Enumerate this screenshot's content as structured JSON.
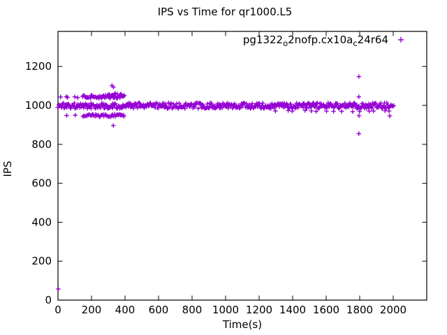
{
  "figure": {
    "background": "#ffffff",
    "accent_color": "#9400d3",
    "text_color": "#000000"
  },
  "chart_data": {
    "type": "scatter",
    "title": "IPS vs Time for qr1000.L5",
    "xlabel": "Time(s)",
    "ylabel": "IPS",
    "xlim": [
      0,
      2200
    ],
    "ylim": [
      0,
      1380
    ],
    "xticks": [
      0,
      200,
      400,
      600,
      800,
      1000,
      1200,
      1400,
      1600,
      1800,
      2000
    ],
    "yticks": [
      0,
      200,
      400,
      600,
      800,
      1000,
      1200
    ],
    "grid": false,
    "tick_style": "inward-mirrored",
    "legend_position": "top-right-inside",
    "series": [
      {
        "name": "pg1322_o2nofp.cx10a_c24r64",
        "legend_parts": [
          {
            "text": "pg1322",
            "sub": false
          },
          {
            "text": "o",
            "sub": true
          },
          {
            "text": "2nofp.cx10a",
            "sub": false
          },
          {
            "text": "c",
            "sub": true
          },
          {
            "text": "24r64",
            "sub": false
          }
        ],
        "marker": "plus",
        "color": "#9400d3",
        "clusters": [
          {
            "name": "main-band",
            "kind": "uniform",
            "t_min": 0,
            "t_max": 1985,
            "t_step": 4,
            "ips_min": 984,
            "ips_max": 1013
          },
          {
            "name": "band-tail",
            "kind": "uniform",
            "t_min": 1986,
            "t_max": 2004,
            "t_step": 4,
            "ips_min": 995,
            "ips_max": 1006
          },
          {
            "name": "upper-row-sparse",
            "kind": "points",
            "points": [
              [
                16,
                1043
              ],
              [
                50,
                1045
              ],
              [
                57,
                1041
              ],
              [
                100,
                1044
              ],
              [
                118,
                1040
              ]
            ]
          },
          {
            "name": "upper-row-dense",
            "kind": "uniform",
            "t_min": 148,
            "t_max": 400,
            "t_step": 5,
            "ips_min": 1036,
            "ips_max": 1052
          },
          {
            "name": "upper-row-extra",
            "kind": "uniform",
            "t_min": 300,
            "t_max": 385,
            "t_step": 9,
            "ips_min": 1048,
            "ips_max": 1064
          },
          {
            "name": "lower-row-sparse",
            "kind": "points",
            "points": [
              [
                52,
                948
              ],
              [
                103,
                950
              ]
            ]
          },
          {
            "name": "lower-row-dense",
            "kind": "uniform",
            "t_min": 150,
            "t_max": 400,
            "t_step": 6,
            "ips_min": 940,
            "ips_max": 955
          },
          {
            "name": "sub-band-dips",
            "kind": "uniform",
            "t_min": 1310,
            "t_max": 1985,
            "t_step": 48,
            "ips_min": 968,
            "ips_max": 974
          },
          {
            "name": "outliers",
            "kind": "points",
            "points": [
              [
                2,
                57
              ],
              [
                322,
                1102
              ],
              [
                331,
                1094
              ],
              [
                330,
                897
              ],
              [
                1795,
                1148
              ],
              [
                1795,
                1044
              ],
              [
                1796,
                947
              ],
              [
                1795,
                855
              ],
              [
                1979,
                946
              ]
            ]
          }
        ]
      }
    ]
  }
}
